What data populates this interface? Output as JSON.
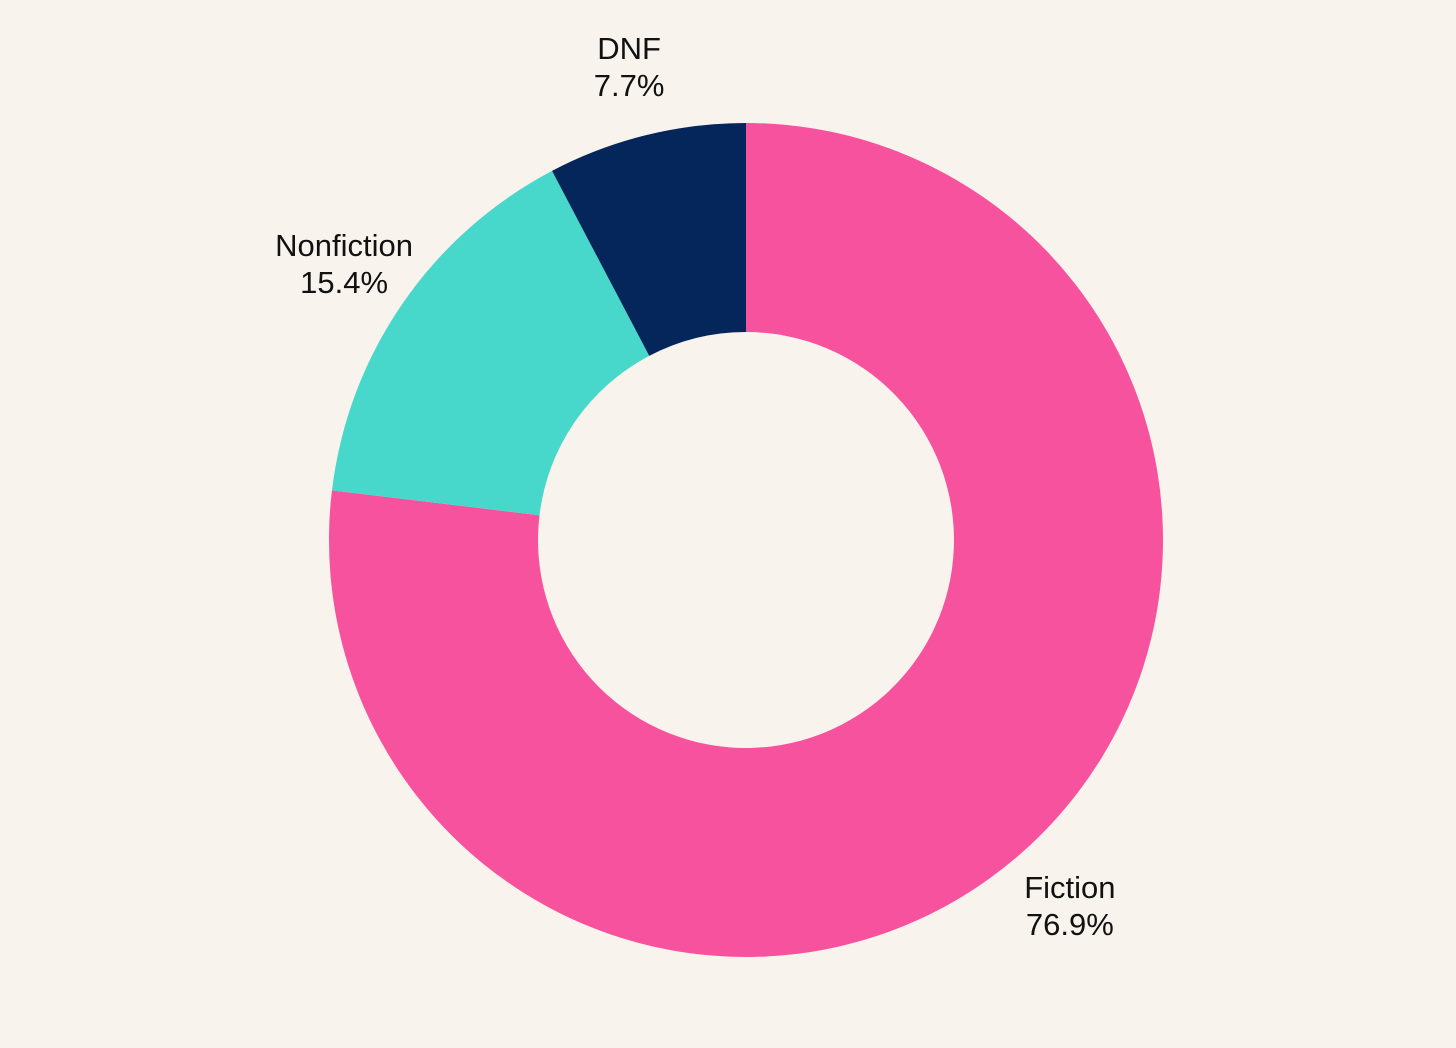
{
  "chart_data": {
    "type": "pie",
    "style": "donut",
    "background": "#f8f3ec",
    "slices": [
      {
        "label": "Fiction",
        "value": 76.9,
        "value_label": "76.9%",
        "color": "#f7529d"
      },
      {
        "label": "Nonfiction",
        "value": 15.4,
        "value_label": "15.4%",
        "color": "#48d8cb"
      },
      {
        "label": "DNF",
        "value": 7.7,
        "value_label": "7.7%",
        "color": "#04265a"
      }
    ]
  }
}
